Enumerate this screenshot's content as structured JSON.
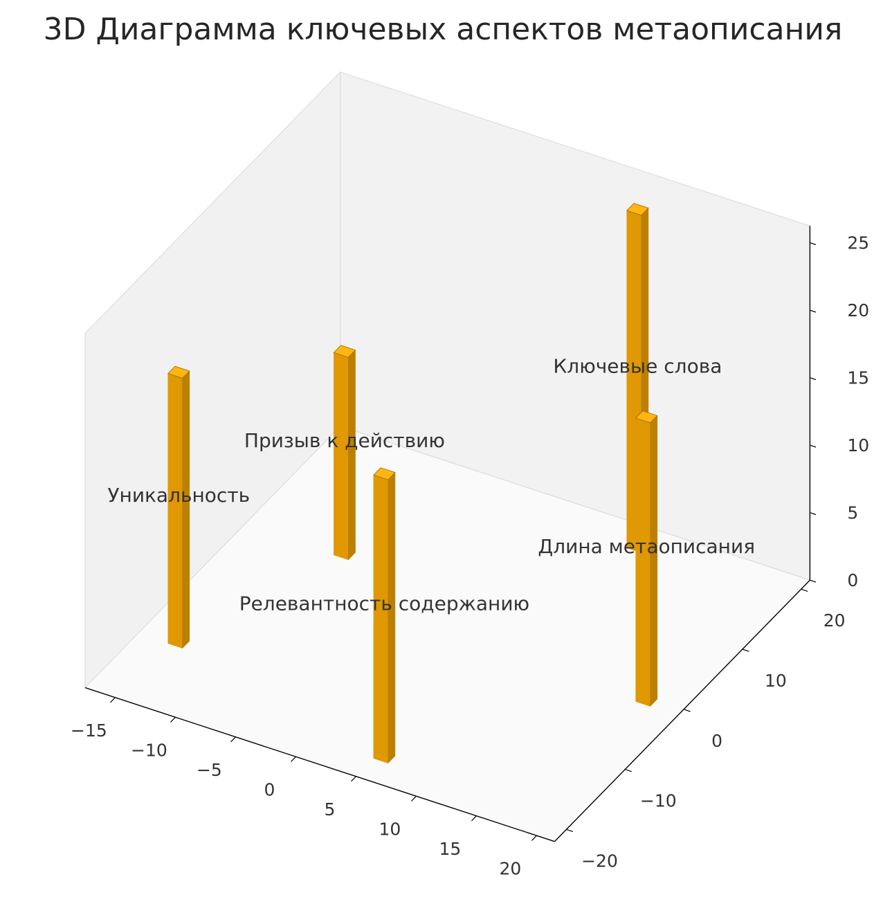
{
  "chart_data": {
    "type": "bar",
    "subtype": "bar3d",
    "title": "3D Диаграмма ключевых аспектов метаописания",
    "bars": [
      {
        "label": "Уникальность",
        "x": -15,
        "y": -13,
        "value": 20
      },
      {
        "label": "Призыв к действию",
        "x": -10,
        "y": 5,
        "value": 15
      },
      {
        "label": "Релевантность содержанию",
        "x": 5,
        "y": -19,
        "value": 21
      },
      {
        "label": "Ключевые слова",
        "x": 8,
        "y": 18,
        "value": 25
      },
      {
        "label": "Длина метаописания",
        "x": 18,
        "y": -1,
        "value": 21
      }
    ],
    "bar_dx": 1.2,
    "bar_dy": 1.2,
    "axes": {
      "x": {
        "min": -17.5,
        "max": 21.5,
        "ticks": [
          -15,
          -10,
          -5,
          0,
          5,
          10,
          15,
          20
        ]
      },
      "y": {
        "min": -22,
        "max": 21.5,
        "ticks": [
          -20,
          -10,
          0,
          10,
          20
        ]
      },
      "z": {
        "min": 0,
        "max": 26.25,
        "ticks": [
          0,
          5,
          10,
          15,
          20,
          25
        ]
      }
    },
    "view": {
      "elev": 30,
      "azim": -60,
      "projection": "orthographic"
    },
    "grid": false,
    "legend": null,
    "colors": {
      "bar_front": "#e09803",
      "bar_side": "#bd7f00",
      "bar_top": "#ffb612",
      "bar_top_edge": "#9a6a00",
      "pane_left": "#f1f1f1",
      "pane_right": "#f2f2f2",
      "pane_floor": "#fafafa",
      "pane_edge": "#d9d9d9",
      "axis_line": "#000000",
      "tick_label": "#333333",
      "bar_label": "#333333",
      "title": "#262626"
    }
  }
}
